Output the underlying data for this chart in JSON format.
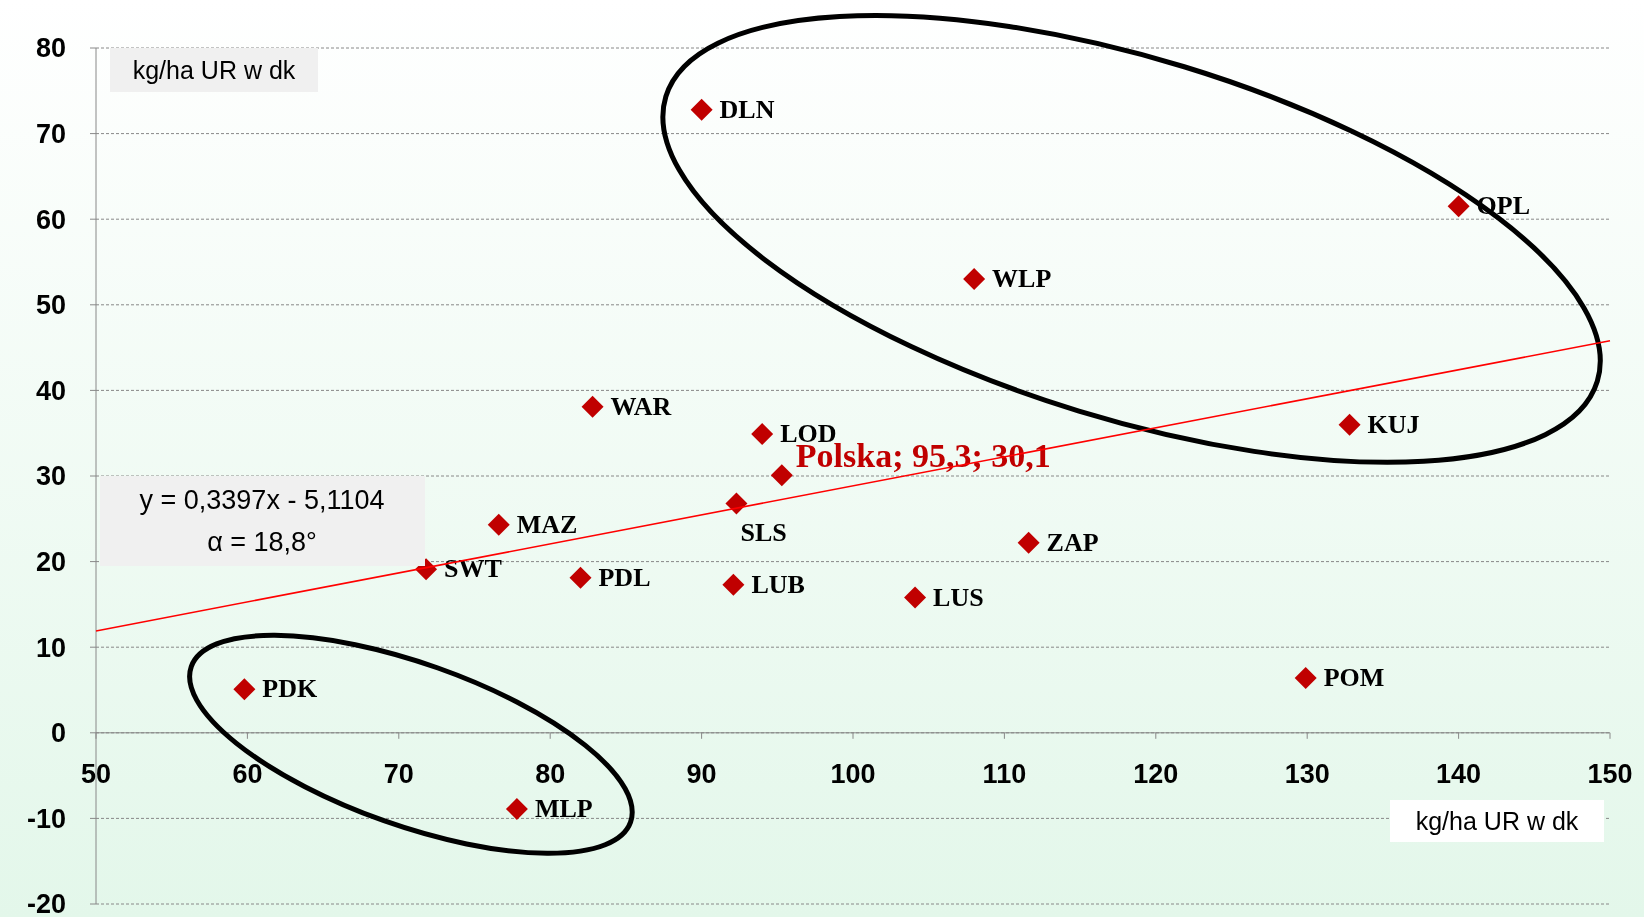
{
  "chart_data": {
    "type": "scatter",
    "xlabel": "kg/ha UR w dk",
    "ylabel": "kg/ha UR w dk",
    "xlim": [
      50,
      150
    ],
    "xticks": [
      50,
      60,
      70,
      80,
      90,
      100,
      110,
      120,
      130,
      140,
      150
    ],
    "ylim": [
      -20,
      80
    ],
    "yticks": [
      -20,
      -10,
      0,
      10,
      20,
      30,
      40,
      50,
      60,
      70,
      80
    ],
    "grid": "y",
    "marker": "diamond",
    "series": [
      {
        "color": "#c00000",
        "x": [
          90,
          140,
          108,
          82.8,
          94,
          132.8,
          92.3,
          76.6,
          111.6,
          71.8,
          82,
          92.1,
          104.1,
          59.8,
          129.9,
          77.8
        ],
        "values": [
          72.8,
          61.5,
          53,
          38.1,
          34.9,
          36,
          26.8,
          24.3,
          22.2,
          19.1,
          18.1,
          17.3,
          15.8,
          5.1,
          6.4,
          -8.9
        ],
        "value_labels": [
          "DLN",
          "OPL",
          "WLP",
          "WAR",
          "LOD",
          "KUJ",
          "SLS",
          "MAZ",
          "ZAP",
          "SWT",
          "PDL",
          "LUB",
          "LUS",
          "PDK",
          "POM",
          "MLP"
        ]
      },
      {
        "color": "#c00000",
        "x": [
          95.3
        ],
        "values": [
          30.1
        ],
        "value_labels": [
          "Polska;  95,3; 30,1"
        ]
      },
      {
        "type": "line",
        "color": "#ff0000",
        "x": [
          50,
          150
        ],
        "values": [
          11.9,
          45.8
        ],
        "marker": "none"
      }
    ],
    "annotations": [
      "y = 0,3397x - 5,1104\nα = 18,8°"
    ]
  }
}
